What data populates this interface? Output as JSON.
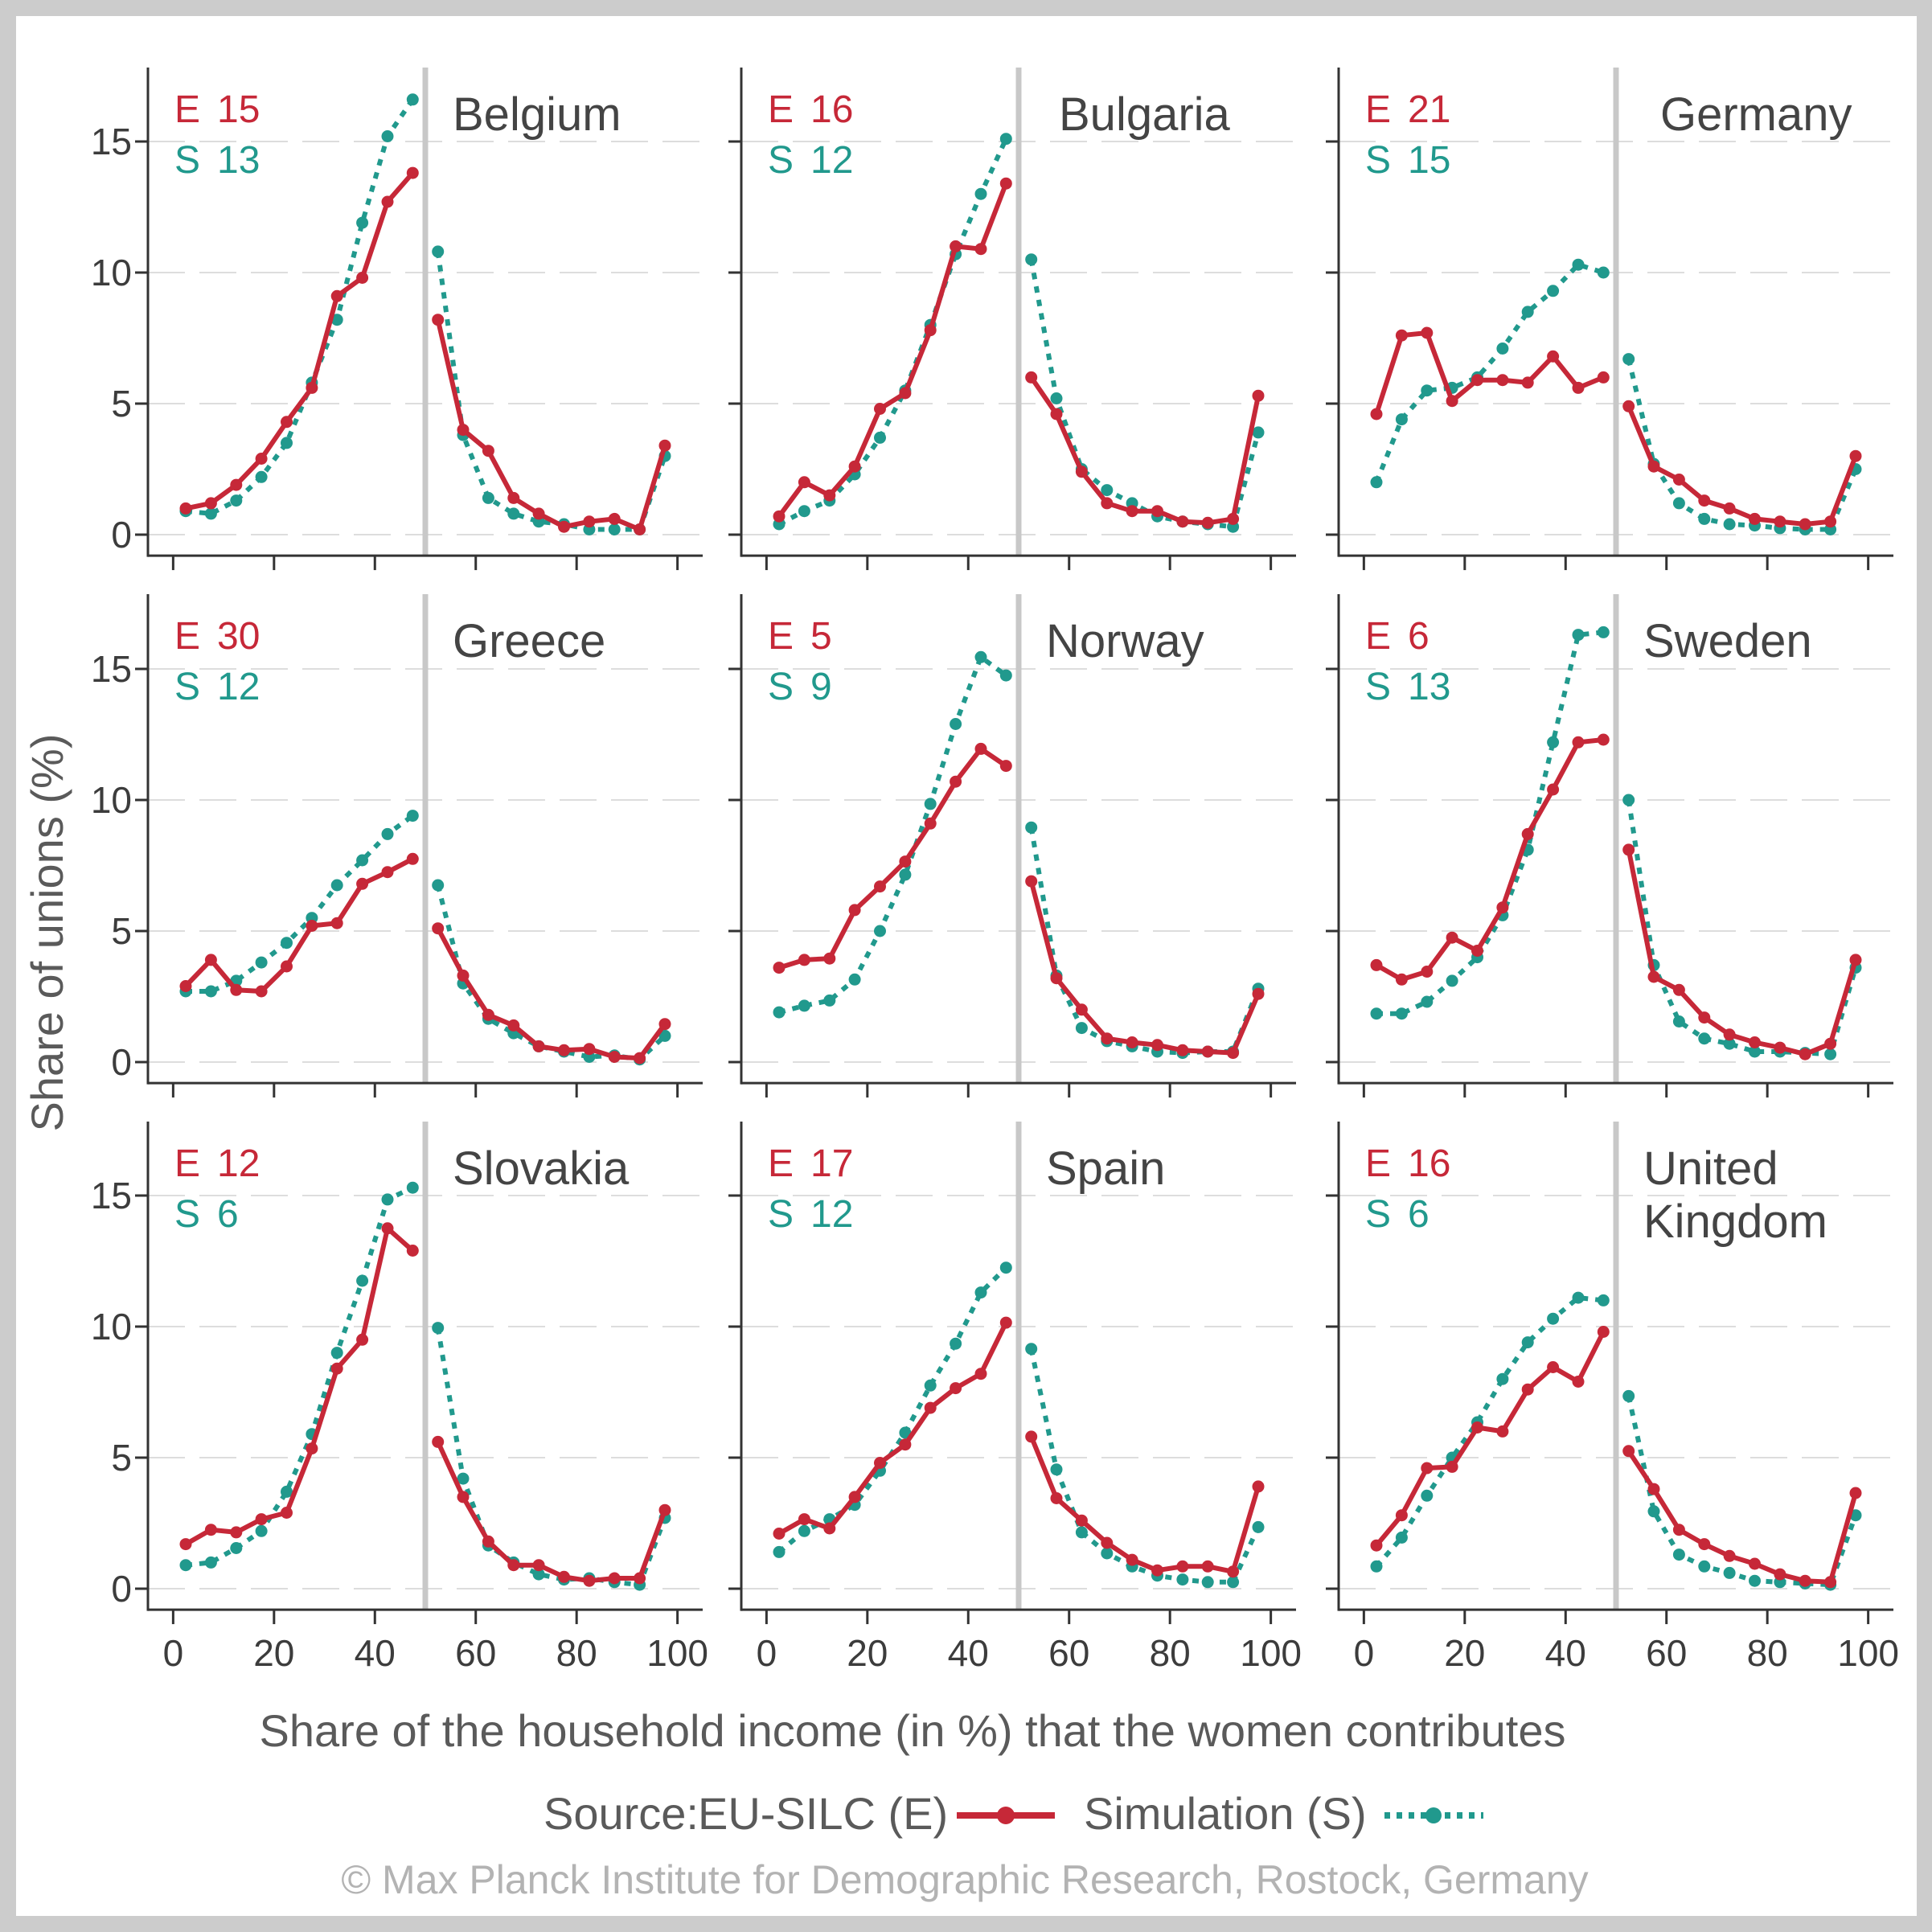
{
  "colors": {
    "eu_silc": "#c62838",
    "simulation": "#21998d",
    "axis": "#333333",
    "grid": "#dddddd",
    "divider": "#c8c8c8",
    "text": "#444444",
    "copyright": "#b3b3b3"
  },
  "labels": {
    "y_axis_title": "Share of unions (%)",
    "x_axis_title": "Share of the household income (in %) that the women contributes",
    "legend_source": "Source:",
    "legend_e": "EU-SILC (E)",
    "legend_s": "Simulation (S)",
    "copyright": "© Max Planck Institute for Demographic Research, Rostock, Germany"
  },
  "chart_data": {
    "type": "line",
    "layout": "small-multiples 3x3",
    "xlabel": "Share of the household income (in %) that the women contributes",
    "ylabel": "Share of unions (%)",
    "xlim": [
      -5,
      105
    ],
    "ylim": [
      -0.8,
      17.8
    ],
    "x_ticks": [
      "0",
      "20",
      "40",
      "60",
      "80",
      "100"
    ],
    "x_tick_values": [
      0,
      20,
      40,
      60,
      80,
      100
    ],
    "y_ticks": [
      "0",
      "5",
      "10",
      "15"
    ],
    "y_tick_values": [
      0,
      5,
      10,
      15
    ],
    "grid": "horizontal dashed",
    "vertical_reference_line": 50,
    "x": [
      2.5,
      7.5,
      12.5,
      17.5,
      22.5,
      27.5,
      32.5,
      37.5,
      42.5,
      47.5,
      52.5,
      57.5,
      62.5,
      67.5,
      72.5,
      77.5,
      82.5,
      87.5,
      92.5,
      97.5
    ],
    "legend": [
      {
        "label": "EU-SILC (E)",
        "style": "solid line with dots",
        "key": "E"
      },
      {
        "label": "Simulation (S)",
        "style": "dotted line with dots",
        "key": "S"
      }
    ],
    "panels": [
      {
        "country": "Belgium",
        "e_label": "E",
        "e_value": "15",
        "s_label": "S",
        "s_value": "13",
        "E": [
          1.0,
          1.2,
          1.9,
          2.9,
          4.3,
          5.6,
          9.1,
          9.8,
          12.7,
          13.8,
          8.2,
          4.0,
          3.2,
          1.4,
          0.8,
          0.3,
          0.5,
          0.6,
          0.2,
          3.4
        ],
        "S": [
          0.9,
          0.8,
          1.3,
          2.2,
          3.5,
          5.8,
          8.2,
          11.9,
          15.2,
          16.6,
          10.8,
          3.8,
          1.4,
          0.8,
          0.5,
          0.4,
          0.2,
          0.2,
          0.2,
          3.0
        ]
      },
      {
        "country": "Bulgaria",
        "e_label": "E",
        "e_value": "16",
        "s_label": "S",
        "s_value": "12",
        "E": [
          0.7,
          2.0,
          1.5,
          2.6,
          4.8,
          5.4,
          7.8,
          11.0,
          10.9,
          13.4,
          6.0,
          4.6,
          2.4,
          1.2,
          0.9,
          0.9,
          0.5,
          0.45,
          0.6,
          5.3
        ],
        "S": [
          0.4,
          0.9,
          1.3,
          2.3,
          3.7,
          5.5,
          8.0,
          10.7,
          13.0,
          15.1,
          10.5,
          5.2,
          2.5,
          1.7,
          1.2,
          0.7,
          0.5,
          0.4,
          0.3,
          3.9
        ]
      },
      {
        "country": "Germany",
        "e_label": "E",
        "e_value": "21",
        "s_label": "S",
        "s_value": "15",
        "E": [
          4.6,
          7.6,
          7.7,
          5.1,
          5.9,
          5.9,
          5.8,
          6.8,
          5.6,
          6.0,
          4.9,
          2.6,
          2.1,
          1.3,
          1.0,
          0.6,
          0.5,
          0.4,
          0.5,
          3.0
        ],
        "S": [
          2.0,
          4.4,
          5.5,
          5.6,
          6.0,
          7.1,
          8.5,
          9.3,
          10.3,
          10.0,
          6.7,
          2.7,
          1.2,
          0.6,
          0.4,
          0.35,
          0.25,
          0.2,
          0.2,
          2.5
        ]
      },
      {
        "country": "Greece",
        "e_label": "E",
        "e_value": "30",
        "s_label": "S",
        "s_value": "12",
        "E": [
          2.9,
          3.9,
          2.75,
          2.7,
          3.65,
          5.2,
          5.3,
          6.8,
          7.25,
          7.75,
          5.1,
          3.3,
          1.8,
          1.4,
          0.6,
          0.45,
          0.5,
          0.2,
          0.15,
          1.45
        ],
        "S": [
          2.7,
          2.7,
          3.1,
          3.8,
          4.55,
          5.5,
          6.75,
          7.7,
          8.7,
          9.4,
          6.75,
          3.0,
          1.65,
          1.1,
          0.6,
          0.4,
          0.2,
          0.25,
          0.1,
          1.0
        ]
      },
      {
        "country": "Norway",
        "e_label": "E",
        "e_value": "5",
        "s_label": "S",
        "s_value": "9",
        "E": [
          3.6,
          3.9,
          3.95,
          5.8,
          6.7,
          7.65,
          9.1,
          10.7,
          11.95,
          11.3,
          6.9,
          3.2,
          2.0,
          0.9,
          0.75,
          0.65,
          0.45,
          0.4,
          0.35,
          2.6
        ],
        "S": [
          1.9,
          2.15,
          2.35,
          3.15,
          5.0,
          7.15,
          9.85,
          12.9,
          15.45,
          14.75,
          8.95,
          3.3,
          1.3,
          0.8,
          0.6,
          0.4,
          0.35,
          0.4,
          0.4,
          2.8
        ]
      },
      {
        "country": "Sweden",
        "e_label": "E",
        "e_value": "6",
        "s_label": "S",
        "s_value": "13",
        "E": [
          3.7,
          3.15,
          3.45,
          4.75,
          4.25,
          5.9,
          8.7,
          10.4,
          12.2,
          12.3,
          8.1,
          3.25,
          2.75,
          1.7,
          1.05,
          0.75,
          0.55,
          0.3,
          0.7,
          3.9
        ],
        "S": [
          1.85,
          1.85,
          2.3,
          3.1,
          4.0,
          5.6,
          8.1,
          12.2,
          16.3,
          16.4,
          10.0,
          3.7,
          1.55,
          0.9,
          0.7,
          0.4,
          0.4,
          0.35,
          0.3,
          3.6
        ]
      },
      {
        "country": "Slovakia",
        "e_label": "E",
        "e_value": "12",
        "s_label": "S",
        "s_value": "6",
        "E": [
          1.7,
          2.25,
          2.15,
          2.65,
          2.9,
          5.35,
          8.4,
          9.5,
          13.75,
          12.9,
          5.6,
          3.5,
          1.8,
          0.9,
          0.9,
          0.45,
          0.3,
          0.4,
          0.4,
          3.0
        ],
        "S": [
          0.9,
          1.0,
          1.55,
          2.2,
          3.7,
          5.9,
          9.0,
          11.75,
          14.85,
          15.3,
          9.95,
          4.2,
          1.65,
          1.0,
          0.55,
          0.35,
          0.4,
          0.25,
          0.15,
          2.7
        ]
      },
      {
        "country": "Spain",
        "e_label": "E",
        "e_value": "17",
        "s_label": "S",
        "s_value": "12",
        "E": [
          2.1,
          2.65,
          2.3,
          3.5,
          4.8,
          5.5,
          6.9,
          7.65,
          8.2,
          10.15,
          5.8,
          3.45,
          2.6,
          1.75,
          1.1,
          0.7,
          0.85,
          0.85,
          0.65,
          3.9
        ],
        "S": [
          1.4,
          2.2,
          2.65,
          3.2,
          4.5,
          5.95,
          7.75,
          9.35,
          11.3,
          12.25,
          9.15,
          4.55,
          2.15,
          1.35,
          0.85,
          0.5,
          0.35,
          0.25,
          0.25,
          2.35
        ]
      },
      {
        "country": "United Kingdom",
        "country_lines": [
          "United",
          "Kingdom"
        ],
        "e_label": "E",
        "e_value": "16",
        "s_label": "S",
        "s_value": "6",
        "E": [
          1.65,
          2.8,
          4.6,
          4.65,
          6.15,
          6.0,
          7.6,
          8.45,
          7.9,
          9.8,
          5.25,
          3.8,
          2.25,
          1.7,
          1.25,
          0.95,
          0.55,
          0.3,
          0.25,
          3.65
        ],
        "S": [
          0.85,
          1.95,
          3.55,
          5.0,
          6.35,
          8.0,
          9.4,
          10.3,
          11.1,
          11.0,
          7.35,
          2.95,
          1.3,
          0.85,
          0.6,
          0.3,
          0.25,
          0.2,
          0.15,
          2.8
        ]
      }
    ]
  }
}
